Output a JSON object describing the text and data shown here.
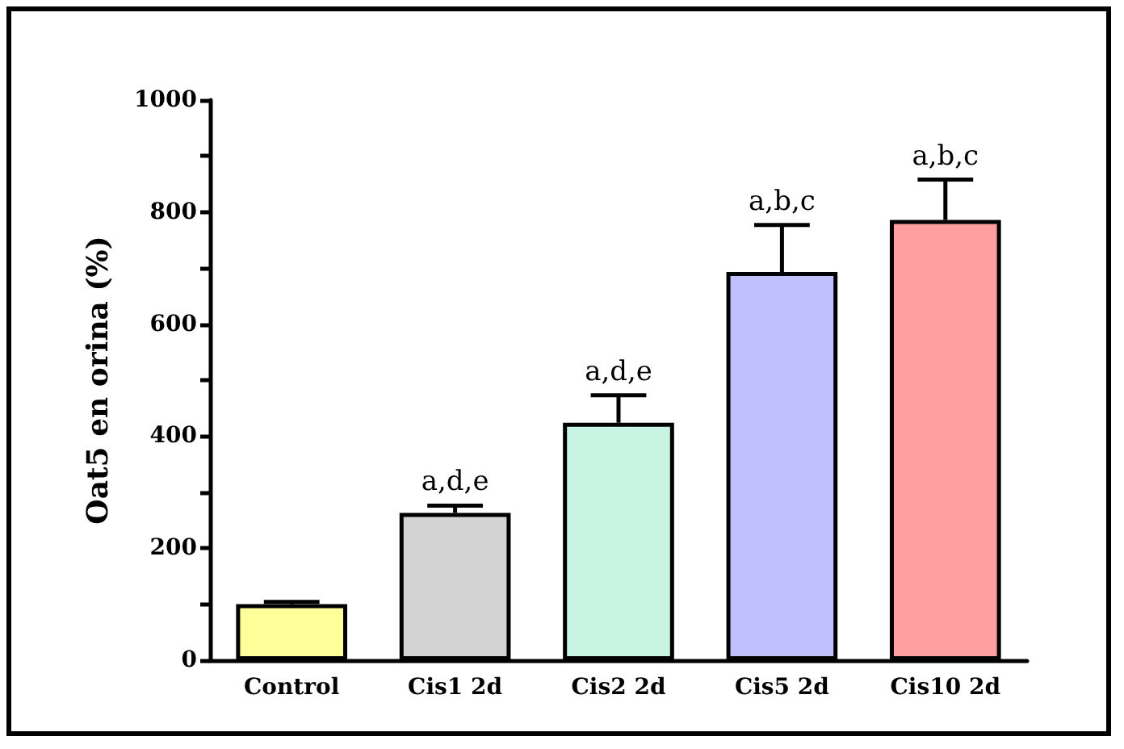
{
  "chart_data": {
    "type": "bar",
    "ylabel": "Oat5 en orina (%)",
    "categories": [
      "Control",
      "Cis1 2d",
      "Cis2 2d",
      "Cis5 2d",
      "Cis10 2d"
    ],
    "values": [
      100,
      263,
      424,
      693,
      786
    ],
    "colors": [
      "#ffff99",
      "#d3d3d3",
      "#c8f5e3",
      "#c0c0ff",
      "#ff9f9f"
    ],
    "errors": [
      [
        100,
        104
      ],
      [
        263,
        276
      ],
      [
        424,
        473
      ],
      [
        693,
        777
      ],
      [
        786,
        858
      ]
    ],
    "ylim": [
      0,
      1000
    ],
    "yticks": [
      0,
      200,
      400,
      600,
      800,
      1000
    ],
    "grid": false,
    "annotations": [
      {
        "text": "a,d,e",
        "x": "Cis1 2d",
        "y": 276
      },
      {
        "text": "a,d,e",
        "x": "Cis2 2d",
        "y": 473
      },
      {
        "text": "a,b,c",
        "x": "Cis5 2d",
        "y": 777
      },
      {
        "text": "a,b,c",
        "x": "Cis10 2d",
        "y": 858
      }
    ]
  }
}
